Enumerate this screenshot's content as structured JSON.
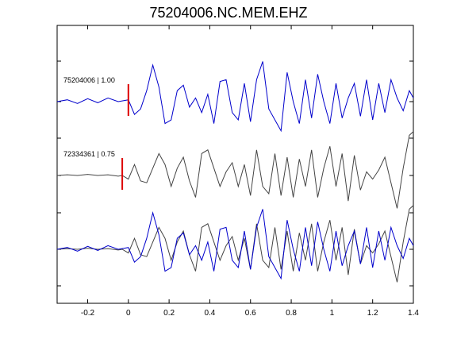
{
  "chart_data": {
    "type": "line",
    "title": "75204006.NC.MEM.EHZ",
    "xlabel": "",
    "ylabel": "",
    "xlim": [
      -0.35,
      1.4
    ],
    "xticks": [
      "-0.2",
      "0",
      "0.2",
      "0.4",
      "0.6",
      "0.8",
      "1",
      "1.2",
      "1.4"
    ],
    "xtick_values": [
      -0.2,
      0,
      0.2,
      0.4,
      0.6,
      0.8,
      1.0,
      1.2,
      1.4
    ],
    "grid": false,
    "legend": "none",
    "colors": {
      "template": "#0000cc",
      "match": "#444444",
      "pick": "#dd0000"
    },
    "traces": [
      {
        "label": "75204006 | 1.00",
        "color": "#0000cc",
        "offset": 0,
        "pick_time": 0.0,
        "points": [
          [
            -0.35,
            0.0
          ],
          [
            -0.3,
            0.05
          ],
          [
            -0.25,
            -0.05
          ],
          [
            -0.2,
            0.08
          ],
          [
            -0.15,
            -0.03
          ],
          [
            -0.1,
            0.1
          ],
          [
            -0.05,
            0.0
          ],
          [
            0.0,
            0.05
          ],
          [
            0.03,
            -0.35
          ],
          [
            0.06,
            -0.2
          ],
          [
            0.09,
            0.3
          ],
          [
            0.12,
            1.0
          ],
          [
            0.15,
            0.4
          ],
          [
            0.18,
            -0.6
          ],
          [
            0.21,
            -0.5
          ],
          [
            0.24,
            0.3
          ],
          [
            0.27,
            0.45
          ],
          [
            0.3,
            -0.15
          ],
          [
            0.33,
            0.1
          ],
          [
            0.36,
            -0.3
          ],
          [
            0.39,
            0.2
          ],
          [
            0.42,
            -0.6
          ],
          [
            0.45,
            0.55
          ],
          [
            0.48,
            0.6
          ],
          [
            0.51,
            -0.3
          ],
          [
            0.54,
            -0.5
          ],
          [
            0.57,
            0.5
          ],
          [
            0.6,
            -0.55
          ],
          [
            0.63,
            0.6
          ],
          [
            0.66,
            1.1
          ],
          [
            0.69,
            -0.2
          ],
          [
            0.72,
            -0.5
          ],
          [
            0.75,
            -0.8
          ],
          [
            0.78,
            0.8
          ],
          [
            0.81,
            0.0
          ],
          [
            0.84,
            -0.6
          ],
          [
            0.87,
            0.6
          ],
          [
            0.9,
            -0.45
          ],
          [
            0.93,
            0.75
          ],
          [
            0.96,
            0.0
          ],
          [
            0.99,
            -0.6
          ],
          [
            1.02,
            0.5
          ],
          [
            1.05,
            -0.45
          ],
          [
            1.08,
            0.1
          ],
          [
            1.11,
            0.5
          ],
          [
            1.14,
            -0.4
          ],
          [
            1.17,
            0.6
          ],
          [
            1.2,
            -0.5
          ],
          [
            1.23,
            0.5
          ],
          [
            1.26,
            -0.3
          ],
          [
            1.29,
            0.6
          ],
          [
            1.32,
            0.1
          ],
          [
            1.35,
            -0.25
          ],
          [
            1.38,
            0.3
          ],
          [
            1.4,
            0.1
          ]
        ]
      },
      {
        "label": "72334361 | 0.75",
        "color": "#444444",
        "offset": 1,
        "pick_time": -0.03,
        "points": [
          [
            -0.35,
            0.0
          ],
          [
            -0.3,
            0.02
          ],
          [
            -0.25,
            0.0
          ],
          [
            -0.2,
            0.03
          ],
          [
            -0.15,
            0.0
          ],
          [
            -0.1,
            0.02
          ],
          [
            -0.05,
            -0.02
          ],
          [
            -0.03,
            0.0
          ],
          [
            0.0,
            -0.1
          ],
          [
            0.03,
            0.3
          ],
          [
            0.06,
            -0.15
          ],
          [
            0.09,
            -0.2
          ],
          [
            0.12,
            0.2
          ],
          [
            0.15,
            0.6
          ],
          [
            0.18,
            0.3
          ],
          [
            0.21,
            -0.3
          ],
          [
            0.24,
            0.2
          ],
          [
            0.27,
            0.5
          ],
          [
            0.3,
            -0.15
          ],
          [
            0.33,
            -0.6
          ],
          [
            0.36,
            0.6
          ],
          [
            0.39,
            0.7
          ],
          [
            0.42,
            0.2
          ],
          [
            0.45,
            -0.3
          ],
          [
            0.48,
            0.1
          ],
          [
            0.51,
            0.35
          ],
          [
            0.54,
            -0.3
          ],
          [
            0.57,
            0.3
          ],
          [
            0.6,
            -0.55
          ],
          [
            0.63,
            0.7
          ],
          [
            0.66,
            -0.3
          ],
          [
            0.69,
            -0.5
          ],
          [
            0.72,
            0.6
          ],
          [
            0.75,
            -0.55
          ],
          [
            0.78,
            0.5
          ],
          [
            0.81,
            -0.6
          ],
          [
            0.84,
            0.45
          ],
          [
            0.87,
            -0.3
          ],
          [
            0.9,
            0.7
          ],
          [
            0.93,
            -0.6
          ],
          [
            0.96,
            0.2
          ],
          [
            0.99,
            0.8
          ],
          [
            1.02,
            -0.3
          ],
          [
            1.05,
            0.6
          ],
          [
            1.08,
            -0.7
          ],
          [
            1.11,
            0.55
          ],
          [
            1.14,
            -0.4
          ],
          [
            1.17,
            0.1
          ],
          [
            1.2,
            -0.1
          ],
          [
            1.23,
            0.15
          ],
          [
            1.26,
            0.5
          ],
          [
            1.29,
            -0.2
          ],
          [
            1.32,
            -0.9
          ],
          [
            1.35,
            0.2
          ],
          [
            1.38,
            1.1
          ],
          [
            1.4,
            1.2
          ]
        ]
      }
    ],
    "overlay_offset": 2
  }
}
